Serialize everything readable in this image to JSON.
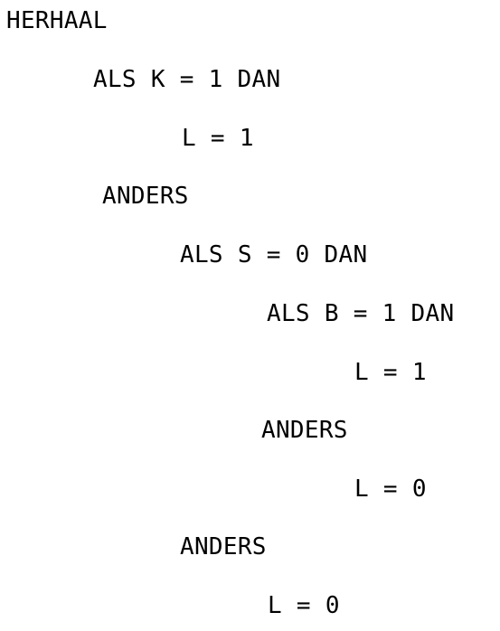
{
  "lines": [
    "HERHAAL",
    "ALS K = 1 DAN",
    "L = 1",
    "ANDERS",
    "ALS S = 0 DAN",
    "ALS B = 1 DAN",
    "L = 1",
    "ANDERS",
    "L = 0",
    "ANDERS",
    "L = 0"
  ]
}
